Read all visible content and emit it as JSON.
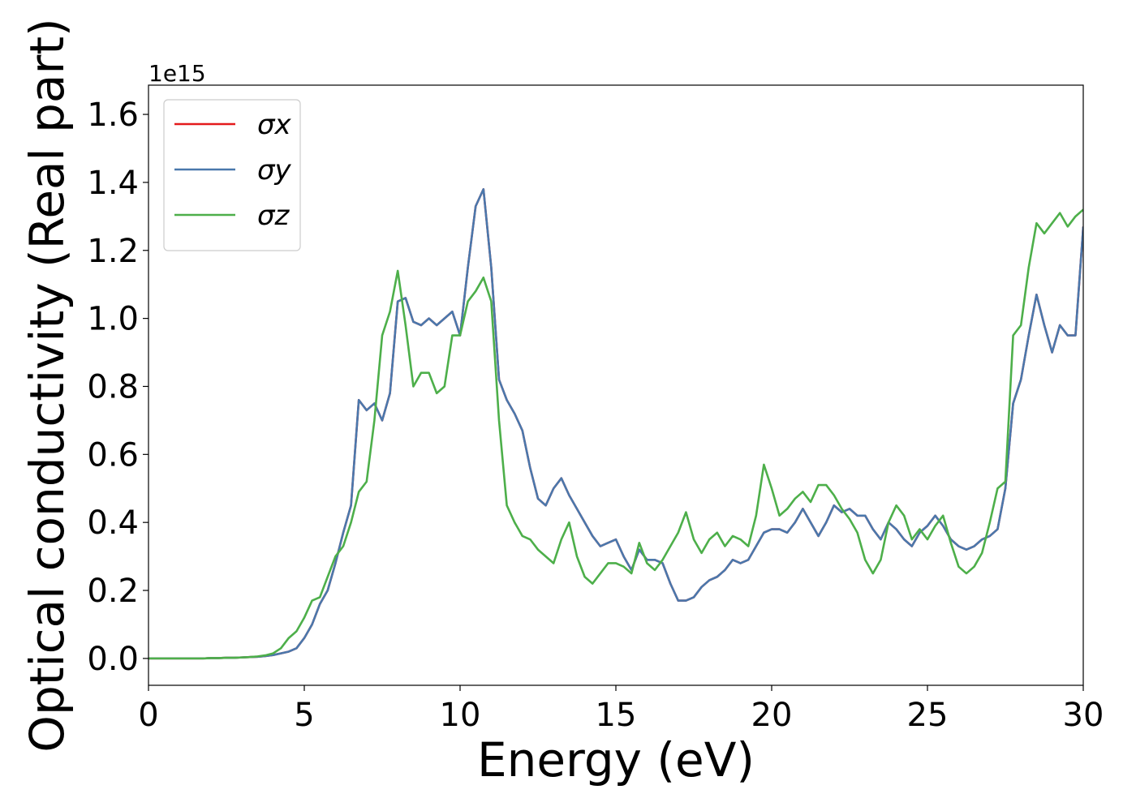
{
  "chart_data": {
    "type": "line",
    "xlabel": "Energy (eV)",
    "ylabel": "Optical conductivity (Real part)",
    "offset_label": "1e15",
    "xlim": [
      0,
      30
    ],
    "xticks": [
      0,
      5,
      10,
      15,
      20,
      25,
      30
    ],
    "ylim": [
      -0.079,
      1.686
    ],
    "yticks": [
      {
        "value": 0,
        "label": "0.0"
      },
      0.2,
      0.4,
      0.6,
      0.8,
      {
        "value": 1,
        "label": "1.0"
      },
      1.2,
      1.4,
      1.6
    ],
    "legend": "upper left",
    "x": [
      0,
      0.25,
      0.5,
      0.75,
      1,
      1.25,
      1.5,
      1.75,
      2,
      2.25,
      2.5,
      2.75,
      3,
      3.25,
      3.5,
      3.75,
      4,
      4.25,
      4.5,
      4.75,
      5,
      5.25,
      5.5,
      5.75,
      6,
      6.25,
      6.5,
      6.75,
      7,
      7.25,
      7.5,
      7.75,
      8,
      8.25,
      8.5,
      8.75,
      9,
      9.25,
      9.5,
      9.75,
      10,
      10.25,
      10.5,
      10.75,
      11,
      11.25,
      11.5,
      11.75,
      12,
      12.25,
      12.5,
      12.75,
      13,
      13.25,
      13.5,
      13.75,
      14,
      14.25,
      14.5,
      14.75,
      15,
      15.25,
      15.5,
      15.75,
      16,
      16.25,
      16.5,
      16.75,
      17,
      17.25,
      17.5,
      17.75,
      18,
      18.25,
      18.5,
      18.75,
      19,
      19.25,
      19.5,
      19.75,
      20,
      20.25,
      20.5,
      20.75,
      21,
      21.25,
      21.5,
      21.75,
      22,
      22.25,
      22.5,
      22.75,
      23,
      23.25,
      23.5,
      23.75,
      24,
      24.25,
      24.5,
      24.75,
      25,
      25.25,
      25.5,
      25.75,
      26,
      26.25,
      26.5,
      26.75,
      27,
      27.25,
      27.5,
      27.75,
      28,
      28.25,
      28.5,
      28.75,
      29,
      29.25,
      29.5,
      29.75,
      30
    ],
    "series": [
      {
        "name": "σx",
        "color": "#e41a1c",
        "values": [
          0,
          0,
          0,
          0,
          0,
          0,
          0,
          0,
          0.001,
          0.001,
          0.002,
          0.002,
          0.003,
          0.004,
          0.005,
          0.007,
          0.01,
          0.015,
          0.02,
          0.03,
          0.06,
          0.1,
          0.16,
          0.2,
          0.28,
          0.37,
          0.45,
          0.76,
          0.73,
          0.75,
          0.7,
          0.78,
          1.05,
          1.06,
          0.99,
          0.98,
          1.0,
          0.98,
          1.0,
          1.02,
          0.95,
          1.15,
          1.33,
          1.38,
          1.15,
          0.82,
          0.76,
          0.72,
          0.67,
          0.56,
          0.47,
          0.45,
          0.5,
          0.53,
          0.48,
          0.44,
          0.4,
          0.36,
          0.33,
          0.34,
          0.35,
          0.3,
          0.26,
          0.32,
          0.29,
          0.29,
          0.28,
          0.22,
          0.17,
          0.17,
          0.18,
          0.21,
          0.23,
          0.24,
          0.26,
          0.29,
          0.28,
          0.29,
          0.33,
          0.37,
          0.38,
          0.38,
          0.37,
          0.4,
          0.44,
          0.4,
          0.36,
          0.4,
          0.45,
          0.43,
          0.44,
          0.42,
          0.42,
          0.38,
          0.35,
          0.4,
          0.38,
          0.35,
          0.33,
          0.37,
          0.39,
          0.42,
          0.39,
          0.35,
          0.33,
          0.32,
          0.33,
          0.35,
          0.36,
          0.38,
          0.5,
          0.75,
          0.82,
          0.95,
          1.07,
          0.98,
          0.9,
          0.98,
          0.95,
          0.95,
          1.27
        ]
      },
      {
        "name": "σy",
        "color": "#4a78ac",
        "values": [
          0,
          0,
          0,
          0,
          0,
          0,
          0,
          0,
          0.001,
          0.001,
          0.002,
          0.002,
          0.003,
          0.004,
          0.005,
          0.007,
          0.01,
          0.015,
          0.02,
          0.03,
          0.06,
          0.1,
          0.16,
          0.2,
          0.28,
          0.37,
          0.45,
          0.76,
          0.73,
          0.75,
          0.7,
          0.78,
          1.05,
          1.06,
          0.99,
          0.98,
          1.0,
          0.98,
          1.0,
          1.02,
          0.95,
          1.15,
          1.33,
          1.38,
          1.15,
          0.82,
          0.76,
          0.72,
          0.67,
          0.56,
          0.47,
          0.45,
          0.5,
          0.53,
          0.48,
          0.44,
          0.4,
          0.36,
          0.33,
          0.34,
          0.35,
          0.3,
          0.26,
          0.32,
          0.29,
          0.29,
          0.28,
          0.22,
          0.17,
          0.17,
          0.18,
          0.21,
          0.23,
          0.24,
          0.26,
          0.29,
          0.28,
          0.29,
          0.33,
          0.37,
          0.38,
          0.38,
          0.37,
          0.4,
          0.44,
          0.4,
          0.36,
          0.4,
          0.45,
          0.43,
          0.44,
          0.42,
          0.42,
          0.38,
          0.35,
          0.4,
          0.38,
          0.35,
          0.33,
          0.37,
          0.39,
          0.42,
          0.39,
          0.35,
          0.33,
          0.32,
          0.33,
          0.35,
          0.36,
          0.38,
          0.5,
          0.75,
          0.82,
          0.95,
          1.07,
          0.98,
          0.9,
          0.98,
          0.95,
          0.95,
          1.27
        ]
      },
      {
        "name": "σz",
        "color": "#4daf4a",
        "values": [
          0,
          0,
          0,
          0,
          0,
          0,
          0,
          0,
          0.001,
          0.001,
          0.002,
          0.002,
          0.003,
          0.004,
          0.006,
          0.009,
          0.015,
          0.03,
          0.06,
          0.08,
          0.12,
          0.17,
          0.18,
          0.24,
          0.3,
          0.33,
          0.4,
          0.49,
          0.52,
          0.7,
          0.95,
          1.02,
          1.14,
          0.98,
          0.8,
          0.84,
          0.84,
          0.78,
          0.8,
          0.95,
          0.95,
          1.05,
          1.08,
          1.12,
          1.05,
          0.7,
          0.45,
          0.4,
          0.36,
          0.35,
          0.32,
          0.3,
          0.28,
          0.35,
          0.4,
          0.3,
          0.24,
          0.22,
          0.25,
          0.28,
          0.28,
          0.27,
          0.25,
          0.34,
          0.28,
          0.26,
          0.29,
          0.33,
          0.37,
          0.43,
          0.35,
          0.31,
          0.35,
          0.37,
          0.33,
          0.36,
          0.35,
          0.33,
          0.42,
          0.57,
          0.5,
          0.42,
          0.44,
          0.47,
          0.49,
          0.46,
          0.51,
          0.51,
          0.48,
          0.44,
          0.41,
          0.37,
          0.29,
          0.25,
          0.29,
          0.4,
          0.45,
          0.42,
          0.35,
          0.38,
          0.35,
          0.39,
          0.42,
          0.34,
          0.27,
          0.25,
          0.27,
          0.31,
          0.4,
          0.5,
          0.52,
          0.95,
          0.98,
          1.15,
          1.28,
          1.25,
          1.28,
          1.31,
          1.27,
          1.3,
          1.32
        ]
      }
    ]
  }
}
